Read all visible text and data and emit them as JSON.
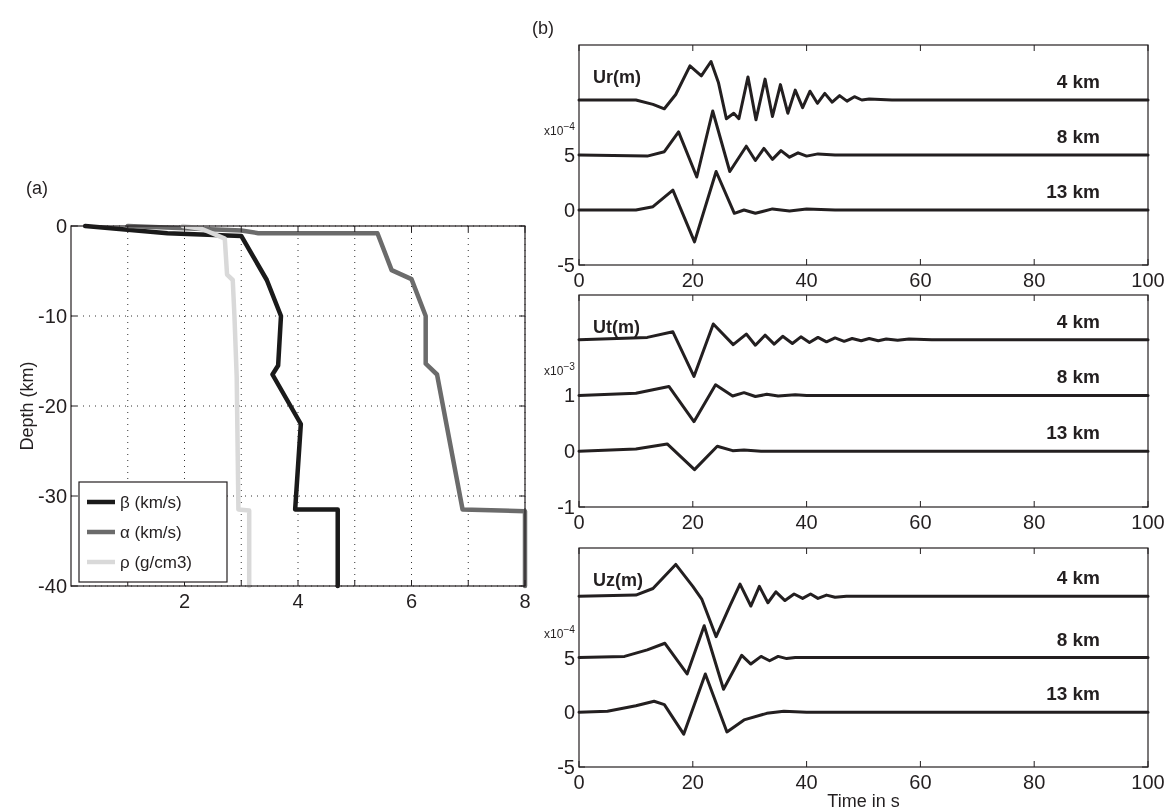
{
  "chart_data": [
    {
      "type": "line",
      "ylabel": "Depth (km)",
      "annotations": [
        "(a)"
      ],
      "xlim": [
        0,
        8
      ],
      "ylim": [
        -40,
        0
      ],
      "xticks": [
        {
          "value": 1,
          "label": null
        },
        2,
        {
          "value": 3,
          "label": null
        },
        4,
        {
          "value": 5,
          "label": null
        },
        6,
        {
          "value": 7,
          "label": null
        },
        8
      ],
      "yticks": [
        0,
        -10,
        -20,
        -30,
        -40
      ],
      "grid": true,
      "legend": "bottom left",
      "series": [
        {
          "name": "β (km/s)",
          "color": "#1a1a1a",
          "x": [
            0.25,
            1.7,
            3.0,
            3.45,
            3.7,
            3.65,
            3.55,
            4.05,
            3.95,
            4.7,
            4.7
          ],
          "values": [
            0,
            -0.8,
            -1.1,
            -6,
            -10,
            -15.5,
            -16.5,
            -22,
            -31.5,
            -31.5,
            -40
          ]
        },
        {
          "name": "α (km/s)",
          "color": "#6b6b6b",
          "x": [
            1.0,
            3.0,
            3.3,
            5.4,
            5.65,
            6.0,
            6.25,
            6.25,
            6.45,
            6.9,
            8.0,
            8.0
          ],
          "values": [
            0,
            -0.5,
            -0.8,
            -0.8,
            -4.9,
            -5.9,
            -10,
            -15.3,
            -16.5,
            -31.5,
            -31.7,
            -40
          ]
        },
        {
          "name": "ρ (g/cm3)",
          "color": "#d9d9d9",
          "x": [
            1.97,
            2.3,
            2.71,
            2.75,
            2.85,
            2.88,
            2.92,
            2.95,
            3.14,
            3.14
          ],
          "values": [
            0,
            -0.3,
            -1.4,
            -5.4,
            -6,
            -10,
            -16.8,
            -31.5,
            -31.6,
            -40
          ]
        }
      ]
    },
    {
      "type": "line",
      "title": "Ur(m)",
      "ylabel": "x10$^{−4}$",
      "annotations": [
        "(b)"
      ],
      "xlim": [
        0,
        100
      ],
      "ylim": [
        -5,
        15
      ],
      "xticks": [
        0,
        20,
        40,
        60,
        80,
        100
      ],
      "yticks": [
        -5,
        0,
        5
      ],
      "grid": false,
      "legend": false,
      "series": [
        {
          "name": "4 km",
          "color": "#231f20",
          "x": [
            0,
            10,
            13,
            15,
            17,
            19.5,
            21.5,
            23.2,
            24.5,
            25.9,
            27.2,
            28.1,
            29.7,
            31.1,
            32.7,
            34,
            35.4,
            36.7,
            38,
            39.3,
            40.6,
            41.9,
            43.2,
            44.5,
            45.8,
            47.1,
            48.4,
            49.7,
            51,
            55,
            100
          ],
          "values": [
            10,
            10,
            9.6,
            9.2,
            10.5,
            13.1,
            12.2,
            13.5,
            11.6,
            8.3,
            8.8,
            8.3,
            12.1,
            8.2,
            11.9,
            8.5,
            11.4,
            8.8,
            10.9,
            9.3,
            10.8,
            9.7,
            10.6,
            9.8,
            10.4,
            9.9,
            10.3,
            10,
            10.1,
            10,
            10
          ]
        },
        {
          "name": "8 km",
          "color": "#231f20",
          "x": [
            0,
            12,
            15,
            17.5,
            20.7,
            23.5,
            26.5,
            29.4,
            31,
            32.5,
            34,
            35.5,
            37,
            38.5,
            40,
            42,
            45,
            100
          ],
          "values": [
            5,
            4.9,
            5.3,
            7.1,
            3,
            9,
            3.5,
            5.8,
            4.5,
            5.6,
            4.6,
            5.4,
            4.8,
            5.2,
            4.9,
            5.1,
            5,
            5
          ]
        },
        {
          "name": "13 km",
          "color": "#231f20",
          "x": [
            0,
            10,
            13,
            16.5,
            20.3,
            24.1,
            27.3,
            29,
            31,
            34,
            37,
            40,
            45,
            100
          ],
          "values": [
            0,
            0,
            0.3,
            1.8,
            -2.9,
            3.5,
            -0.3,
            0,
            -0.3,
            0.1,
            -0.1,
            0.1,
            0,
            0
          ]
        }
      ]
    },
    {
      "type": "line",
      "title": "Ut(m)",
      "ylabel": "x10$^{−3}$",
      "xlim": [
        0,
        100
      ],
      "ylim": [
        -1,
        2.8
      ],
      "xticks": [
        0,
        20,
        40,
        60,
        80,
        100
      ],
      "yticks": [
        -1,
        0,
        1
      ],
      "grid": false,
      "legend": false,
      "series": [
        {
          "name": "4 km",
          "color": "#231f20",
          "x": [
            0,
            12,
            16.5,
            20.2,
            23.6,
            27.1,
            29.4,
            31,
            32.7,
            34.3,
            35.8,
            37.5,
            39,
            40.5,
            42,
            43.5,
            45,
            46.6,
            48,
            49.6,
            51,
            52.6,
            54,
            56,
            58,
            62,
            100
          ],
          "values": [
            2,
            2.04,
            2.14,
            1.34,
            2.28,
            1.91,
            2.1,
            1.9,
            2.08,
            1.92,
            2.06,
            1.93,
            2.05,
            1.95,
            2.04,
            1.96,
            2.03,
            1.97,
            2.02,
            1.98,
            2.02,
            1.98,
            2.01,
            1.99,
            2.01,
            2,
            2
          ]
        },
        {
          "name": "8 km",
          "color": "#231f20",
          "x": [
            0,
            10,
            15.8,
            20.2,
            24,
            27,
            29,
            31,
            33,
            35,
            38,
            40,
            100
          ],
          "values": [
            1,
            1.04,
            1.16,
            0.53,
            1.19,
            0.99,
            1.05,
            0.98,
            1.02,
            0.99,
            1.01,
            1,
            1
          ]
        },
        {
          "name": "13 km",
          "color": "#231f20",
          "x": [
            0,
            10,
            15.5,
            20.3,
            24.3,
            27,
            29,
            32,
            100
          ],
          "values": [
            0,
            0.04,
            0.13,
            -0.33,
            0.09,
            0.01,
            0.02,
            0,
            0
          ]
        }
      ]
    },
    {
      "type": "line",
      "title": "Uz(m)",
      "ylabel": "x10$^{−4}$",
      "xlabel": "Time in s",
      "xlim": [
        0,
        100
      ],
      "ylim": [
        -5,
        15
      ],
      "xticks": [
        0,
        20,
        40,
        60,
        80,
        100
      ],
      "yticks": [
        -5,
        0,
        5
      ],
      "grid": false,
      "legend": false,
      "series": [
        {
          "name": "4 km",
          "color": "#231f20",
          "x": [
            0,
            10,
            13,
            17,
            20,
            21.6,
            24.1,
            26.5,
            28.3,
            30.2,
            31.7,
            33.2,
            34.6,
            36.2,
            37.8,
            39.3,
            40.7,
            42,
            43.5,
            45,
            47,
            50,
            100
          ],
          "values": [
            10.6,
            10.7,
            11.3,
            13.5,
            11.5,
            10.3,
            6.9,
            9.7,
            11.7,
            9.7,
            11.5,
            10,
            11,
            10.2,
            10.8,
            10.4,
            10.8,
            10.4,
            10.7,
            10.5,
            10.6,
            10.6,
            10.6
          ]
        },
        {
          "name": "8 km",
          "color": "#231f20",
          "x": [
            0,
            8,
            12,
            15.1,
            19,
            22,
            25.4,
            28.6,
            30.2,
            32,
            33.5,
            35,
            36.5,
            38,
            100
          ],
          "values": [
            5,
            5.1,
            5.7,
            6.3,
            3.5,
            7.9,
            2.1,
            5.2,
            4.4,
            5.1,
            4.7,
            5.1,
            4.9,
            5,
            5
          ]
        },
        {
          "name": "13 km",
          "color": "#231f20",
          "x": [
            0,
            5,
            10,
            13.2,
            15,
            18.4,
            22.2,
            26,
            29,
            33,
            36,
            40,
            100
          ],
          "values": [
            0,
            0.1,
            0.6,
            1,
            0.7,
            -2,
            3.5,
            -1.8,
            -0.7,
            -0.1,
            0.1,
            0,
            0
          ]
        }
      ]
    }
  ]
}
